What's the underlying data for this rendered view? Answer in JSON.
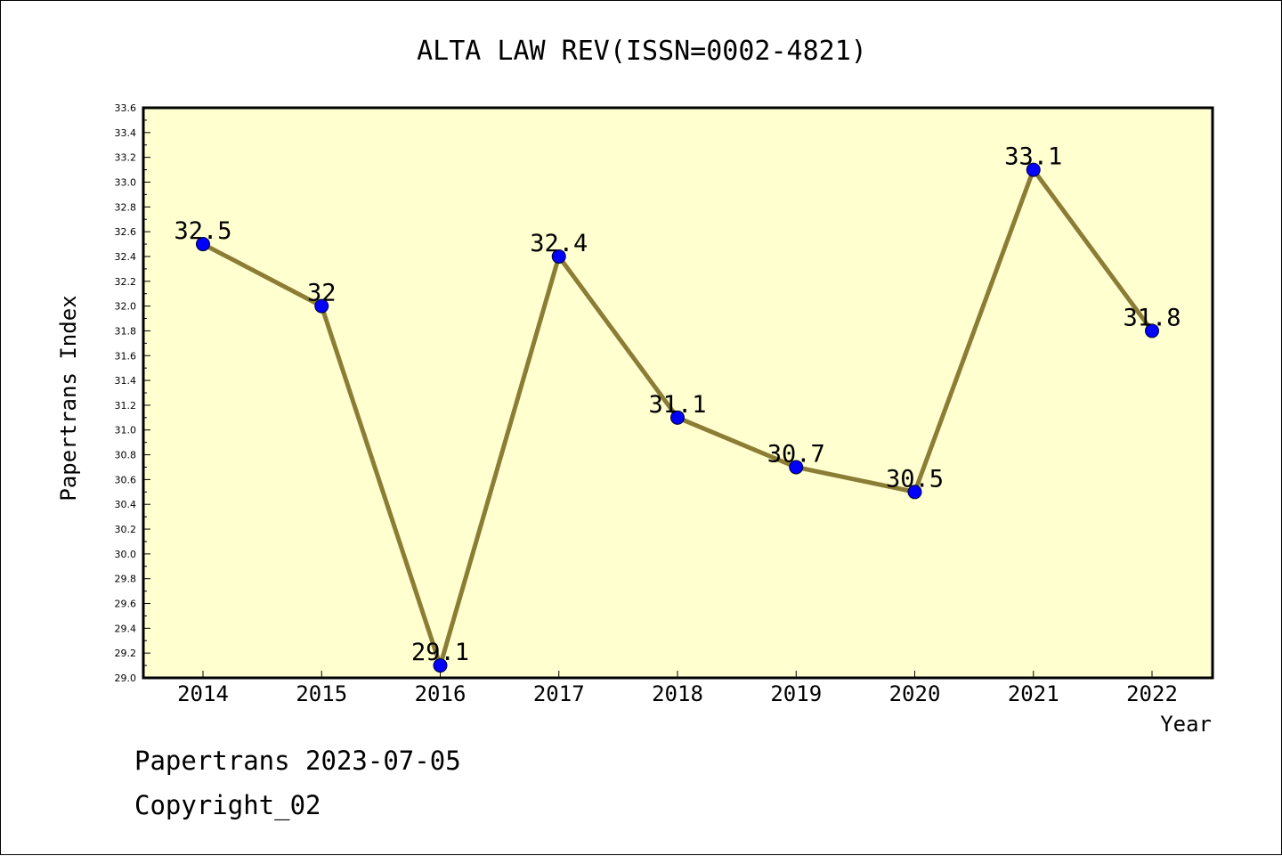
{
  "chart_data": {
    "type": "line",
    "title": "ALTA LAW REV(ISSN=0002-4821)",
    "xlabel": "Year",
    "ylabel": "Papertrans Index",
    "categories": [
      "2014",
      "2015",
      "2016",
      "2017",
      "2018",
      "2019",
      "2020",
      "2021",
      "2022"
    ],
    "series": [
      {
        "values": [
          32.5,
          32,
          29.1,
          32.4,
          31.1,
          30.7,
          30.5,
          33.1,
          31.8
        ],
        "labels": [
          "32.5",
          "32",
          "29.1",
          "32.4",
          "31.1",
          "30.7",
          "30.5",
          "33.1",
          "31.8"
        ]
      }
    ],
    "ylim": [
      29.0,
      33.6
    ],
    "yticks": [
      "29.0",
      "29.2",
      "29.4",
      "29.6",
      "29.8",
      "30.0",
      "30.2",
      "30.4",
      "30.6",
      "30.8",
      "31.0",
      "31.2",
      "31.4",
      "31.6",
      "31.8",
      "32.0",
      "32.2",
      "32.4",
      "32.6",
      "32.8",
      "33.0",
      "33.2",
      "33.4",
      "33.6"
    ],
    "grid": false,
    "colors": {
      "plot_background": "#ffffd0",
      "line": "#8b7d35",
      "marker": "#0000ff"
    }
  },
  "footer": {
    "line1": "Papertrans 2023-07-05",
    "line2": "Copyright_02"
  }
}
